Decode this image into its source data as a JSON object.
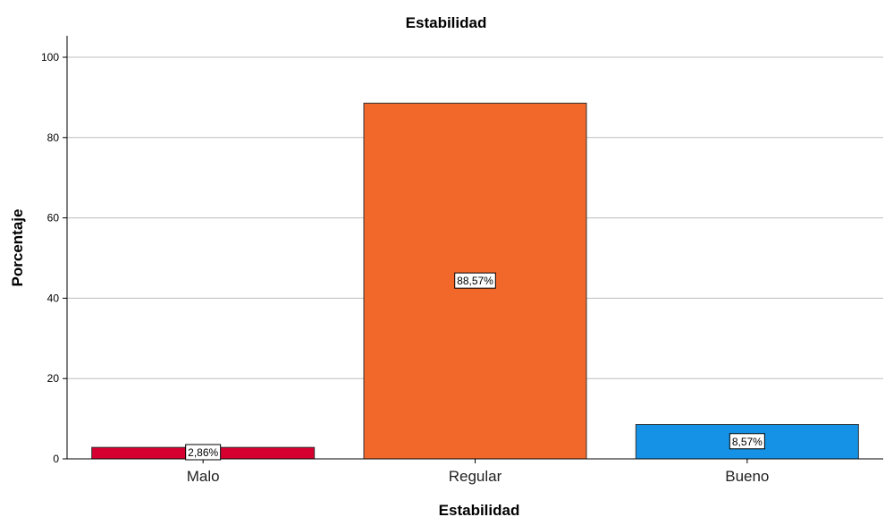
{
  "chart_data": {
    "type": "bar",
    "title": "Estabilidad",
    "xlabel": "Estabilidad",
    "ylabel": "Porcentaje",
    "categories": [
      "Malo",
      "Regular",
      "Bueno"
    ],
    "values": [
      2.86,
      88.57,
      8.57
    ],
    "data_labels": [
      "2,86%",
      "88,57%",
      "8,57%"
    ],
    "colors": [
      "#d5002f",
      "#f2682a",
      "#1592e6"
    ],
    "yticks": [
      "0",
      "20",
      "40",
      "60",
      "80",
      "100"
    ],
    "ylim": [
      0,
      105
    ],
    "grid": true,
    "legend": "none"
  }
}
